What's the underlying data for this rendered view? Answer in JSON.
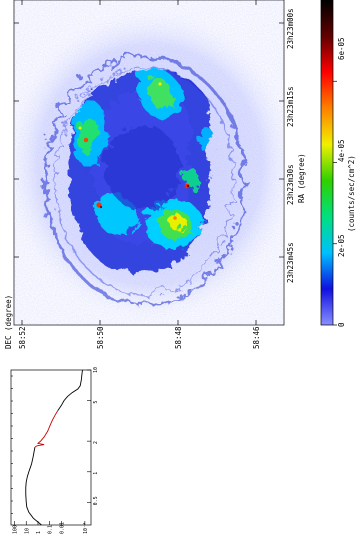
{
  "chart_data": [
    {
      "type": "heatmap",
      "xlabel": "RA (degree)",
      "ylabel": "DEC (degree)",
      "ra_ticks": [
        "23h23m00s",
        "23h23m15s",
        "23h23m30s",
        "23h23m45s"
      ],
      "dec_ticks": [
        "58:52",
        "58:50",
        "58:48",
        "58:46"
      ],
      "colorbar": {
        "label": "(counts/sec/cm^2)",
        "ticks": [
          "0",
          "2e-05",
          "4e-05",
          "6e-05"
        ],
        "tick_values": [
          0,
          2e-05,
          4e-05,
          6e-05
        ],
        "range": [
          0,
          8e-05
        ],
        "colors": [
          "#8890ff",
          "#1010e0",
          "#00c0ff",
          "#00e080",
          "#30d000",
          "#f0f000",
          "#ff8000",
          "#ff0000",
          "#600000",
          "#000000"
        ]
      }
    },
    {
      "type": "line",
      "xscale": "log",
      "yscale": "log",
      "x_ticks": [
        "0.5",
        "1",
        "2",
        "5",
        "10"
      ],
      "x_tick_values": [
        0.5,
        1,
        2,
        5,
        10
      ],
      "y_ticks": [
        "10⁻⁴",
        "0.01",
        "0.1",
        "1",
        "10",
        "100"
      ],
      "y_tick_values": [
        0.0001,
        0.01,
        0.1,
        1,
        10,
        100
      ],
      "xlim": [
        0.3,
        10
      ],
      "ylim": [
        3e-05,
        200
      ],
      "series": [
        {
          "color": "#000000",
          "x": [
            0.3,
            0.35,
            0.4,
            0.45,
            0.5,
            0.6,
            0.7,
            0.8,
            0.9,
            1.0,
            1.1,
            1.2,
            1.4,
            1.6,
            1.75
          ],
          "y": [
            0.5,
            2.5,
            6,
            9,
            10,
            11,
            11,
            10,
            8,
            6,
            4.5,
            3.5,
            2.6,
            2.1,
            1.8
          ]
        },
        {
          "color": "#cc0000",
          "x": [
            1.75,
            1.8,
            1.85,
            1.9,
            2.0,
            2.2,
            2.5,
            2.8,
            3.2,
            3.6,
            4.0
          ],
          "y": [
            1.8,
            1.2,
            0.3,
            1.0,
            0.6,
            0.3,
            0.15,
            0.1,
            0.06,
            0.035,
            0.02
          ]
        },
        {
          "color": "#000000",
          "x": [
            4.0,
            4.5,
            5.0,
            5.5,
            6.0,
            6.5,
            7.0,
            8.0,
            9.0,
            10.0
          ],
          "y": [
            0.02,
            0.01,
            0.006,
            0.003,
            0.0012,
            0.0004,
            0.00025,
            0.0002,
            0.00018,
            0.00016
          ]
        }
      ]
    }
  ]
}
